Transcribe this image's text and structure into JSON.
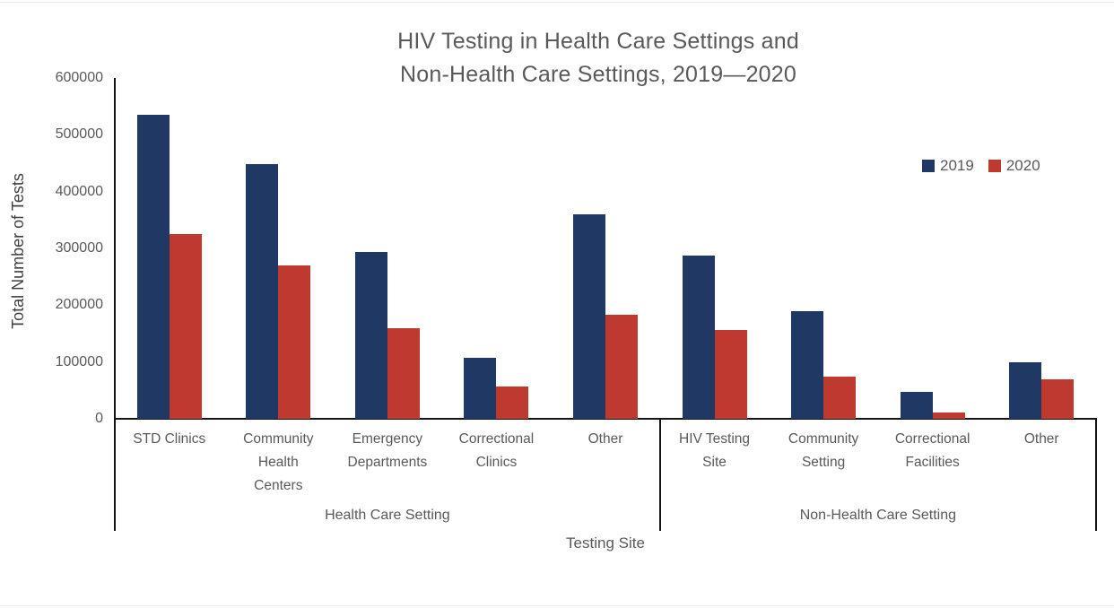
{
  "chart_data": {
    "type": "bar",
    "title": "HIV Testing in Health Care Settings and\nNon-Health Care Settings, 2019—2020",
    "ylabel": "Total Number of Tests",
    "xlabel": "Testing Site",
    "ylim": [
      0,
      600000
    ],
    "yticks": [
      0,
      100000,
      200000,
      300000,
      400000,
      500000,
      600000
    ],
    "grid": false,
    "legend_position": "right",
    "categories": [
      "STD Clinics",
      "Community\nHealth\nCenters",
      "Emergency\nDepartments",
      "Correctional\nClinics",
      "Other",
      "HIV Testing\nSite",
      "Community\nSetting",
      "Correctional\nFacilities",
      "Other"
    ],
    "series": [
      {
        "name": "2019",
        "color": "#1F3864",
        "values": [
          535000,
          449000,
          293000,
          108000,
          360000,
          287000,
          190000,
          47000,
          99000
        ]
      },
      {
        "name": "2020",
        "color": "#BE3A30",
        "values": [
          325000,
          270000,
          160000,
          57000,
          183000,
          157000,
          75000,
          11000,
          69000
        ]
      }
    ],
    "group_spans": [
      {
        "label": "Health Care Setting",
        "from": 0,
        "to": 4
      },
      {
        "label": "Non-Health Care Setting",
        "from": 5,
        "to": 8
      }
    ]
  },
  "colors": {
    "axis": "#151515",
    "text": "#595959",
    "background": "#ffffff"
  }
}
